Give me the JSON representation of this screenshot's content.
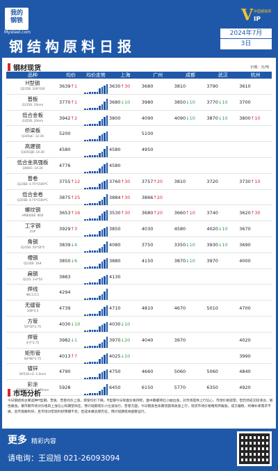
{
  "header": {
    "logo_line1": "我的",
    "logo_line2": "钢铁",
    "logo_url": "Mysteel.com",
    "vip_letter": "V",
    "vip_suffix": "IP",
    "vip_cn": "中国钢铁网",
    "title": "钢结构原料日报",
    "month": "2024年7月",
    "day": "3日"
  },
  "section_spot": "钢材现货",
  "unit": "价格：元/吨",
  "columns": [
    "品种",
    "均价",
    "均价走势",
    "上海",
    "广州",
    "成都",
    "武汉",
    "杭州"
  ],
  "rows": [
    {
      "name": "H型钢",
      "spec": "Q235B; 200*100",
      "avg": "3639",
      "avg_dir": "up",
      "avg_chg": "1",
      "cells": [
        [
          "3630",
          "up",
          "30"
        ],
        [
          "3680",
          "",
          ""
        ],
        [
          "3810",
          "",
          ""
        ],
        [
          "3790",
          "",
          ""
        ],
        [
          "3610",
          "",
          ""
        ]
      ]
    },
    {
      "name": "普板",
      "spec": "Q235B: 20mm",
      "avg": "3770",
      "avg_dir": "up",
      "avg_chg": "1",
      "cells": [
        [
          "3680",
          "dn",
          "10"
        ],
        [
          "3980",
          "",
          ""
        ],
        [
          "3850",
          "dn",
          "10"
        ],
        [
          "3770",
          "dn",
          "10"
        ],
        [
          "3700",
          "",
          ""
        ]
      ]
    },
    {
      "name": "低合金板",
      "spec": "Q355B: 20mm",
      "avg": "3942",
      "avg_dir": "up",
      "avg_chg": "2",
      "cells": [
        [
          "3800",
          "",
          ""
        ],
        [
          "4090",
          "",
          ""
        ],
        [
          "4090",
          "dn",
          "10"
        ],
        [
          "3870",
          "dn",
          "10"
        ],
        [
          "3800",
          "up",
          "10"
        ]
      ]
    },
    {
      "name": "桥梁板",
      "spec": "Q345qC: 12-30",
      "avg": "5200",
      "avg_dir": "",
      "avg_chg": "",
      "cells": [
        [
          "",
          "",
          ""
        ],
        [
          "5100",
          "",
          ""
        ],
        [
          "",
          "",
          ""
        ],
        [
          "",
          "",
          ""
        ],
        [
          "",
          "",
          ""
        ]
      ]
    },
    {
      "name": "高建钢",
      "spec": "Q345GJB: 14-20",
      "avg": "4580",
      "avg_dir": "",
      "avg_chg": "",
      "cells": [
        [
          "4580",
          "",
          ""
        ],
        [
          "4950",
          "",
          ""
        ],
        [
          "",
          "",
          ""
        ],
        [
          "",
          "",
          ""
        ],
        [
          "",
          "",
          ""
        ]
      ]
    },
    {
      "name": "低合金高强板",
      "spec": "Q460C: 14-20",
      "avg": "4776",
      "avg_dir": "",
      "avg_chg": "",
      "cells": [
        [
          "4580",
          "",
          ""
        ],
        [
          "",
          "",
          ""
        ],
        [
          "",
          "",
          ""
        ],
        [
          "",
          "",
          ""
        ],
        [
          "",
          "",
          ""
        ]
      ]
    },
    {
      "name": "普卷",
      "spec": "Q235B: 4.75*1500*C",
      "avg": "3755",
      "avg_dir": "up",
      "avg_chg": "12",
      "cells": [
        [
          "3760",
          "up",
          "30"
        ],
        [
          "3757",
          "up",
          "20"
        ],
        [
          "3810",
          "",
          ""
        ],
        [
          "3720",
          "",
          ""
        ],
        [
          "3730",
          "up",
          "10"
        ]
      ]
    },
    {
      "name": "低合金卷",
      "spec": "Q355B: 4.75*1500*C",
      "avg": "3875",
      "avg_dir": "up",
      "avg_chg": "25",
      "cells": [
        [
          "3884",
          "up",
          "30"
        ],
        [
          "3866",
          "up",
          "20"
        ],
        [
          "",
          "",
          ""
        ],
        [
          "",
          "",
          ""
        ],
        [
          "",
          "",
          ""
        ]
      ]
    },
    {
      "name": "螺纹钢",
      "spec": "HRB400E: Φ20",
      "avg": "3653",
      "avg_dir": "up",
      "avg_chg": "16",
      "cells": [
        [
          "3530",
          "up",
          "30"
        ],
        [
          "3680",
          "up",
          "20"
        ],
        [
          "3660",
          "up",
          "10"
        ],
        [
          "3740",
          "",
          ""
        ],
        [
          "3620",
          "up",
          "30"
        ]
      ]
    },
    {
      "name": "工字钢",
      "spec": "25#",
      "avg": "3929",
      "avg_dir": "up",
      "avg_chg": "3",
      "cells": [
        [
          "3850",
          "",
          ""
        ],
        [
          "4030",
          "",
          ""
        ],
        [
          "4580",
          "",
          ""
        ],
        [
          "4020",
          "dn",
          "10"
        ],
        [
          "3670",
          "",
          ""
        ]
      ]
    },
    {
      "name": "角钢",
      "spec": "Q235B: 50*50*5",
      "avg": "3839",
      "avg_dir": "dn",
      "avg_chg": "4",
      "cells": [
        [
          "4080",
          "",
          ""
        ],
        [
          "3750",
          "",
          ""
        ],
        [
          "3350",
          "dn",
          "10"
        ],
        [
          "3930",
          "dn",
          "10"
        ],
        [
          "3690",
          "",
          ""
        ]
      ]
    },
    {
      "name": "槽钢",
      "spec": "Q235B: 16#",
      "avg": "3850",
      "avg_dir": "dn",
      "avg_chg": "6",
      "cells": [
        [
          "3880",
          "",
          ""
        ],
        [
          "4150",
          "",
          ""
        ],
        [
          "3870",
          "dn",
          "10"
        ],
        [
          "3970",
          "",
          ""
        ],
        [
          "4000",
          "",
          ""
        ]
      ]
    },
    {
      "name": "扁钢",
      "spec": "Q235: 3-6*50",
      "avg": "3883",
      "avg_dir": "",
      "avg_chg": "",
      "cells": [
        [
          "4130",
          "",
          ""
        ],
        [
          "",
          "",
          ""
        ],
        [
          "",
          "",
          ""
        ],
        [
          "",
          "",
          ""
        ],
        [
          "",
          "",
          ""
        ]
      ]
    },
    {
      "name": "焊线",
      "spec": "Φ6.5,5.5",
      "avg": "4294",
      "avg_dir": "",
      "avg_chg": "",
      "cells": [
        [
          "",
          "",
          ""
        ],
        [
          "",
          "",
          ""
        ],
        [
          "",
          "",
          ""
        ],
        [
          "",
          "",
          ""
        ],
        [
          "",
          "",
          ""
        ]
      ]
    },
    {
      "name": "无缝管",
      "spec": "108*4.5",
      "avg": "4739",
      "avg_dir": "",
      "avg_chg": "",
      "cells": [
        [
          "4710",
          "",
          ""
        ],
        [
          "4810",
          "",
          ""
        ],
        [
          "4670",
          "",
          ""
        ],
        [
          "5010",
          "",
          ""
        ],
        [
          "4700",
          "",
          ""
        ]
      ]
    },
    {
      "name": "方管",
      "spec": "50*50*2.75",
      "avg": "4030",
      "avg_dir": "dn",
      "avg_chg": "10",
      "cells": [
        [
          "4030",
          "dn",
          "10"
        ],
        [
          "",
          "",
          ""
        ],
        [
          "",
          "",
          ""
        ],
        [
          "",
          "",
          ""
        ],
        [
          "",
          "",
          ""
        ]
      ]
    },
    {
      "name": "焊管",
      "spec": "4寸*3.75",
      "avg": "3982",
      "avg_dir": "dn",
      "avg_chg": "1",
      "cells": [
        [
          "3970",
          "dn",
          "20"
        ],
        [
          "4040",
          "",
          ""
        ],
        [
          "3970",
          "",
          ""
        ],
        [
          "",
          "",
          ""
        ],
        [
          "4020",
          "",
          ""
        ]
      ]
    },
    {
      "name": "矩形管",
      "spec": "60*80*3.75",
      "avg": "4013",
      "avg_dir": "up",
      "avg_chg": "7",
      "cells": [
        [
          "4025",
          "dn",
          "10"
        ],
        [
          "",
          "",
          ""
        ],
        [
          "",
          "",
          ""
        ],
        [
          "",
          "",
          ""
        ],
        [
          "3990",
          "",
          ""
        ]
      ]
    },
    {
      "name": "镀锌",
      "spec": "DX51D+Z: 1.0mm",
      "avg": "4790",
      "avg_dir": "",
      "avg_chg": "",
      "cells": [
        [
          "4750",
          "",
          ""
        ],
        [
          "4660",
          "",
          ""
        ],
        [
          "5060",
          "",
          ""
        ],
        [
          "5060",
          "",
          ""
        ],
        [
          "4840",
          "",
          ""
        ]
      ]
    },
    {
      "name": "彩涂",
      "spec": "TDC51D+Z: 0.476mm",
      "avg": "5928",
      "avg_dir": "",
      "avg_chg": "",
      "cells": [
        [
          "6450",
          "",
          ""
        ],
        [
          "6150",
          "",
          ""
        ],
        [
          "5770",
          "",
          ""
        ],
        [
          "6350",
          "",
          ""
        ],
        [
          "4920",
          "",
          ""
        ]
      ]
    }
  ],
  "section_analysis": "市场分析",
  "analysis_text": "今日钢结构主要品种H型钢、普板、普卷均价上涨，焊管均价下跌。H型钢今日早盘价格持稳，盘中期螺持红小幅拉涨，对市场提供上行信心，市场价格观望，但仍然成交较清淡，随性跟涨。钢市期市场对价格的上涨信心和期望尚在，预计短期或价小位波动行。普卷方面，今日钢黑色系期货震荡收涨上行，现货市场价格略有所跟涨，成交偏稳，终端补库需求不振，后市观察利好，且市场对宏观利好预期不足，但成本端支撑仍在，预计短期或将盘整运行。",
  "footer": {
    "more": "更多",
    "more_sub": "精彩内容",
    "tel": "请电询：王迎旭  021-26093094"
  }
}
